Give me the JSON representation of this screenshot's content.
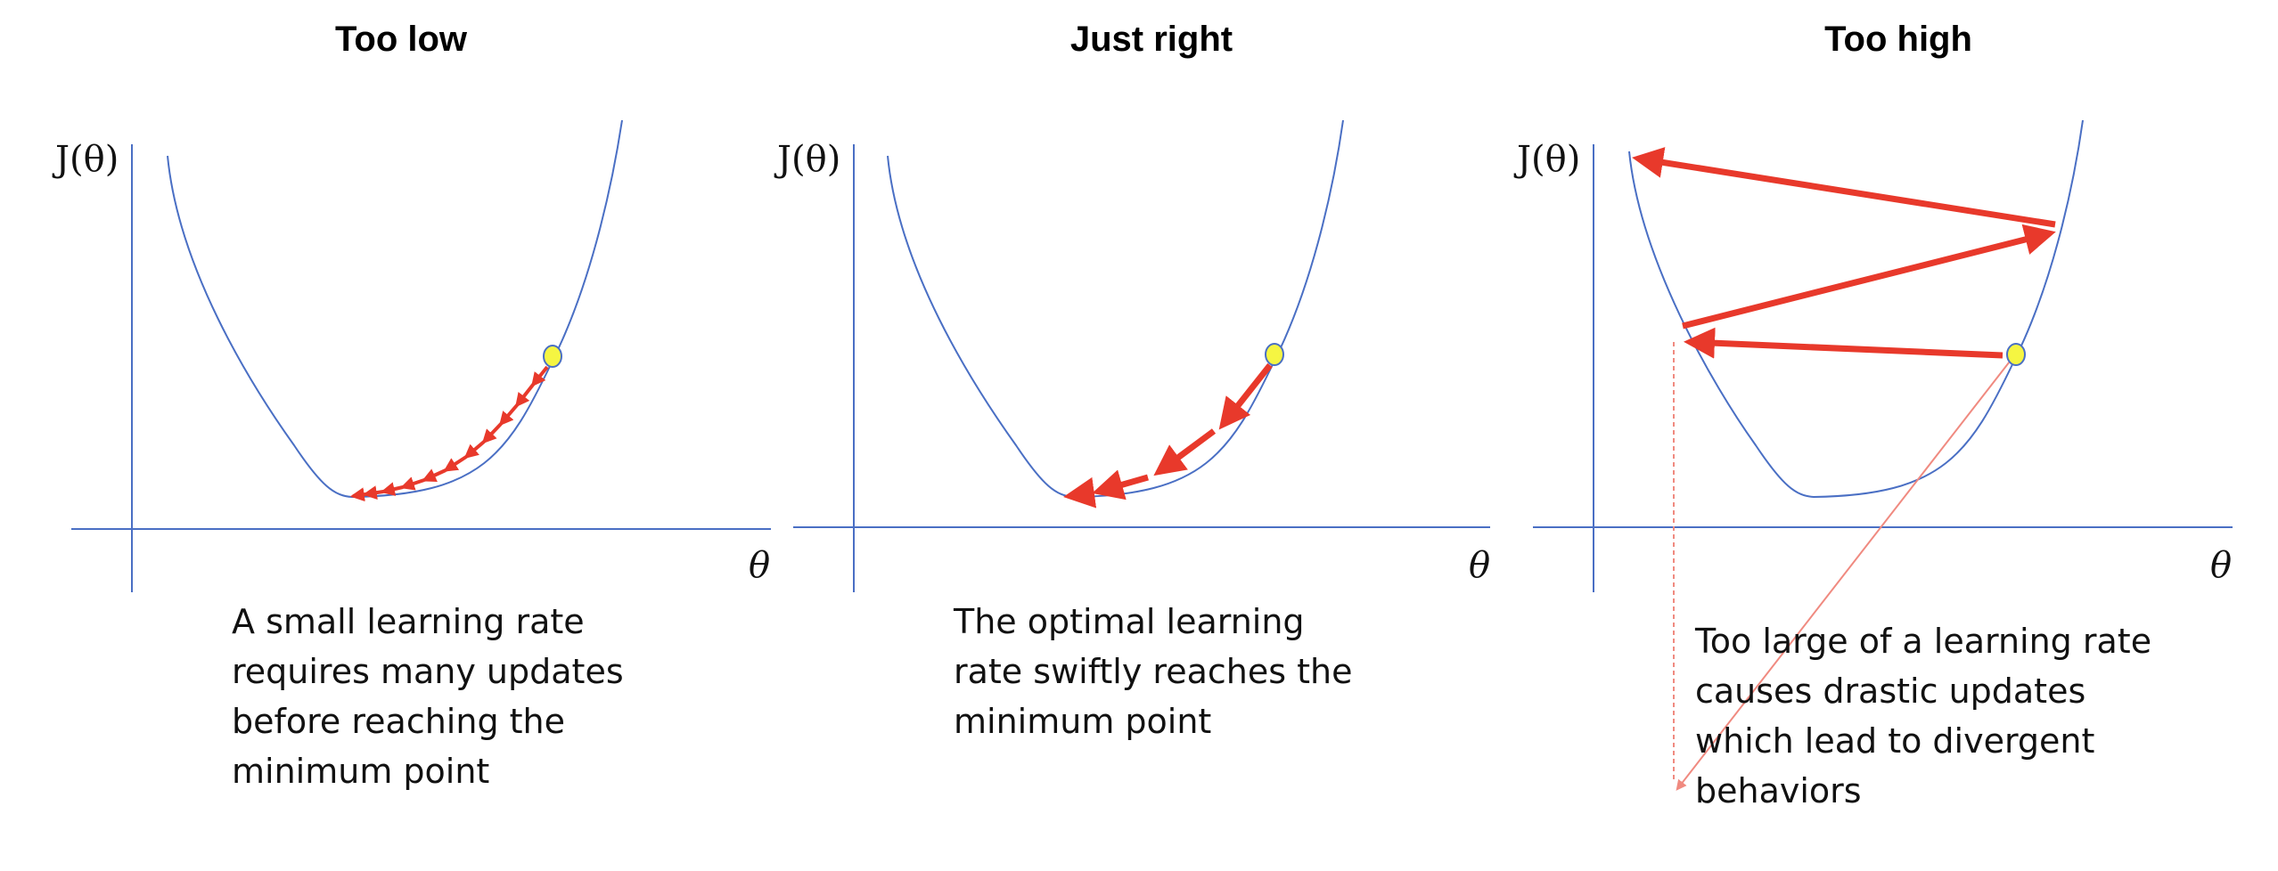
{
  "panels": [
    {
      "title": "Too low",
      "y_label": "J(θ)",
      "x_label": "θ",
      "caption": "A small learning rate\nrequires many updates\nbefore reaching the\nminimum point"
    },
    {
      "title": "Just right",
      "y_label": "J(θ)",
      "x_label": "θ",
      "caption": "The optimal learning\nrate swiftly reaches the\nminimum point"
    },
    {
      "title": "Too high",
      "y_label": "J(θ)",
      "x_label": "θ",
      "caption": "Too large of a learning rate\ncauses drastic updates\nwhich lead to divergent\nbehaviors"
    }
  ],
  "colors": {
    "curve": "#4a6fc4",
    "axis": "#4a6fc4",
    "arrow": "#e8392b",
    "point_fill": "#f5f542",
    "guide": "#f08a80"
  }
}
